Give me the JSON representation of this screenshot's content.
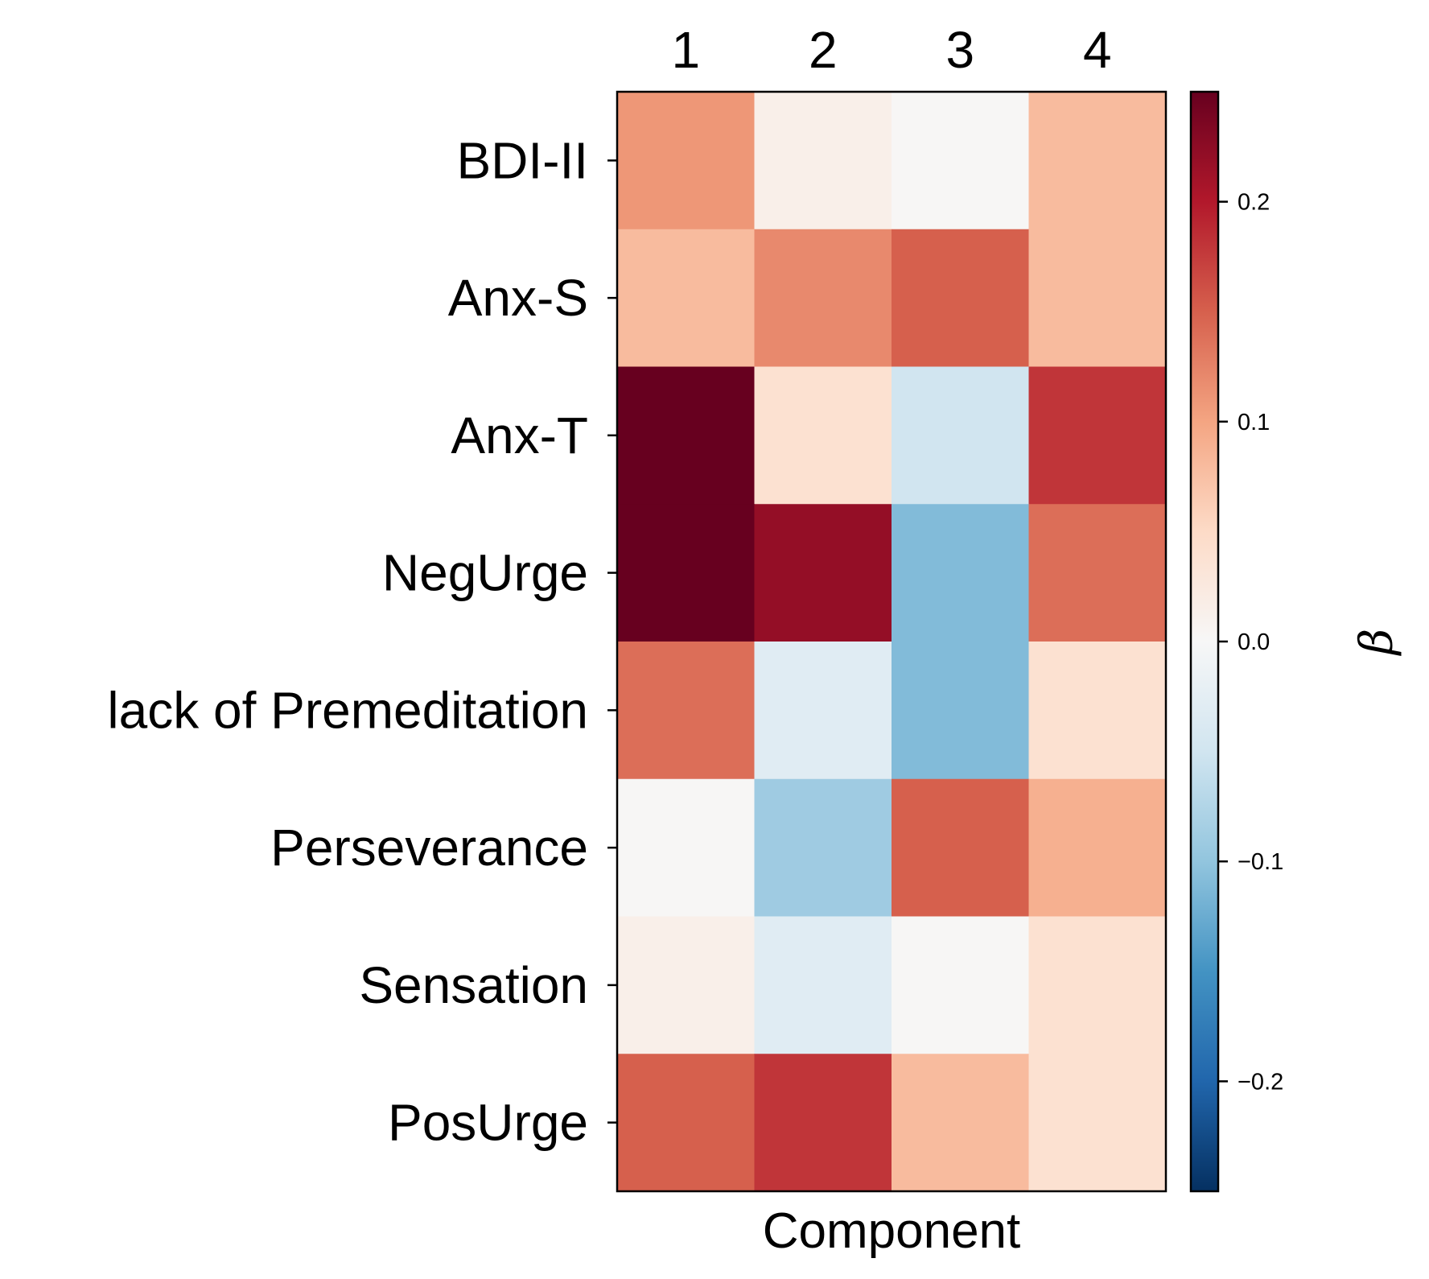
{
  "chart_data": {
    "type": "heatmap",
    "title": "",
    "xlabel": "Component",
    "ylabel": "",
    "x_categories": [
      "1",
      "2",
      "3",
      "4"
    ],
    "y_categories": [
      "BDI-II",
      "Anx-S",
      "Anx-T",
      "NegUrge",
      "lack of Premeditation",
      "Perseverance",
      "Sensation",
      "PosUrge"
    ],
    "values": [
      [
        0.11,
        0.015,
        0.002,
        0.08
      ],
      [
        0.08,
        0.12,
        0.15,
        0.08
      ],
      [
        0.25,
        0.04,
        -0.05,
        0.18
      ],
      [
        0.25,
        0.22,
        -0.11,
        0.14
      ],
      [
        0.14,
        -0.03,
        -0.11,
        0.04
      ],
      [
        0.002,
        -0.09,
        0.15,
        0.09
      ],
      [
        0.015,
        -0.03,
        0.002,
        0.04
      ],
      [
        0.15,
        0.18,
        0.08,
        0.04
      ]
    ],
    "colorbar": {
      "label": "β",
      "range": [
        -0.25,
        0.25
      ],
      "ticks": [
        -0.2,
        -0.1,
        0.0,
        0.1,
        0.2
      ],
      "tick_labels": [
        "−0.2",
        "−0.1",
        "0.0",
        "0.1",
        "0.2"
      ],
      "colormap": "RdBu_r"
    },
    "x_axis_position": "top",
    "grid": false
  }
}
